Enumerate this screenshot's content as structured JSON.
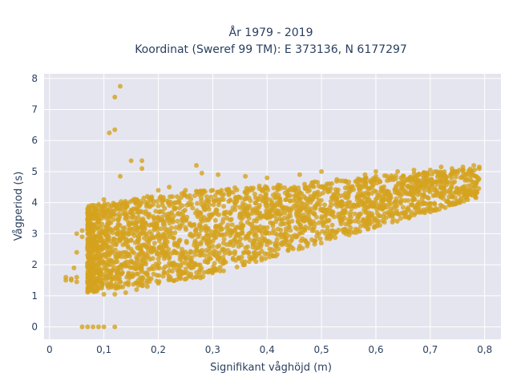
{
  "chart_data": {
    "type": "scatter",
    "title_line1": "År 1979 - 2019",
    "title_line2": "Koordinat (Sweref 99 TM): E 373136, N 6177297",
    "xlabel": "Signifikant våghöjd (m)",
    "ylabel": "Vågperiod (s)",
    "xlim": [
      -0.01,
      0.83
    ],
    "ylim": [
      -0.4,
      8.15
    ],
    "x_ticks": [
      0,
      0.1,
      0.2,
      0.3,
      0.4,
      0.5,
      0.6,
      0.7,
      0.8
    ],
    "x_tick_labels": [
      "0",
      "0,1",
      "0,2",
      "0,3",
      "0,4",
      "0,5",
      "0,6",
      "0,7",
      "0,8"
    ],
    "y_ticks": [
      0,
      1,
      2,
      3,
      4,
      5,
      6,
      7,
      8
    ],
    "y_tick_labels": [
      "0",
      "1",
      "2",
      "3",
      "4",
      "5",
      "6",
      "7",
      "8"
    ],
    "grid": true,
    "legend": "none",
    "marker_color": "#d4a21e",
    "plot_bg": "#e5e5ef",
    "series": [
      {
        "points": [
          [
            0.03,
            1.6
          ],
          [
            0.03,
            1.5
          ],
          [
            0.04,
            1.55
          ],
          [
            0.04,
            1.5
          ],
          [
            0.05,
            1.6
          ],
          [
            0.05,
            1.45
          ],
          [
            0.05,
            3.0
          ],
          [
            0.06,
            3.1
          ],
          [
            0.06,
            2.9
          ],
          [
            0.045,
            1.9
          ],
          [
            0.05,
            2.4
          ],
          [
            0.06,
            0.0
          ],
          [
            0.07,
            0.0
          ],
          [
            0.08,
            0.0
          ],
          [
            0.09,
            0.0
          ],
          [
            0.1,
            0.0
          ],
          [
            0.12,
            0.0
          ],
          [
            0.13,
            7.75
          ],
          [
            0.12,
            7.4
          ],
          [
            0.11,
            6.25
          ],
          [
            0.12,
            6.35
          ],
          [
            0.15,
            5.35
          ],
          [
            0.17,
            5.35
          ],
          [
            0.17,
            5.1
          ],
          [
            0.13,
            4.85
          ],
          [
            0.27,
            5.2
          ],
          [
            0.28,
            4.95
          ],
          [
            0.31,
            4.9
          ],
          [
            0.36,
            4.85
          ],
          [
            0.4,
            4.8
          ],
          [
            0.46,
            4.9
          ],
          [
            0.5,
            5.0
          ],
          [
            0.58,
            4.9
          ],
          [
            0.6,
            5.0
          ],
          [
            0.64,
            5.0
          ],
          [
            0.67,
            5.05
          ],
          [
            0.7,
            5.05
          ],
          [
            0.72,
            5.15
          ],
          [
            0.74,
            5.1
          ],
          [
            0.76,
            5.15
          ],
          [
            0.78,
            5.2
          ],
          [
            0.79,
            5.15
          ],
          [
            0.75,
            4.95
          ],
          [
            0.72,
            4.85
          ],
          [
            0.7,
            4.75
          ],
          [
            0.68,
            4.6
          ],
          [
            0.66,
            4.5
          ],
          [
            0.64,
            4.3
          ],
          [
            0.62,
            4.25
          ],
          [
            0.6,
            4.1
          ],
          [
            0.58,
            4.0
          ],
          [
            0.56,
            3.9
          ],
          [
            0.54,
            3.75
          ],
          [
            0.52,
            3.6
          ],
          [
            0.5,
            3.5
          ],
          [
            0.48,
            3.4
          ],
          [
            0.46,
            3.3
          ],
          [
            0.44,
            3.2
          ],
          [
            0.42,
            3.15
          ],
          [
            0.4,
            3.05
          ],
          [
            0.38,
            2.95
          ],
          [
            0.36,
            2.85
          ],
          [
            0.34,
            2.8
          ],
          [
            0.32,
            2.7
          ],
          [
            0.3,
            2.6
          ],
          [
            0.28,
            2.4
          ],
          [
            0.26,
            2.1
          ],
          [
            0.24,
            1.8
          ],
          [
            0.22,
            1.55
          ],
          [
            0.2,
            1.4
          ],
          [
            0.18,
            1.3
          ],
          [
            0.16,
            1.2
          ],
          [
            0.14,
            1.1
          ],
          [
            0.12,
            1.05
          ],
          [
            0.1,
            1.05
          ],
          [
            0.08,
            1.2
          ],
          [
            0.07,
            1.4
          ],
          [
            0.07,
            2.0
          ],
          [
            0.08,
            2.5
          ],
          [
            0.08,
            3.0
          ],
          [
            0.09,
            3.5
          ],
          [
            0.1,
            3.9
          ],
          [
            0.1,
            4.1
          ],
          [
            0.12,
            3.9
          ],
          [
            0.14,
            4.0
          ],
          [
            0.16,
            4.1
          ],
          [
            0.18,
            4.2
          ],
          [
            0.2,
            4.4
          ],
          [
            0.22,
            4.5
          ],
          [
            0.25,
            4.4
          ],
          [
            0.28,
            4.3
          ],
          [
            0.3,
            4.4
          ],
          [
            0.33,
            4.4
          ],
          [
            0.36,
            4.35
          ],
          [
            0.39,
            4.4
          ],
          [
            0.42,
            4.45
          ],
          [
            0.45,
            4.5
          ],
          [
            0.48,
            4.55
          ],
          [
            0.51,
            4.6
          ],
          [
            0.54,
            4.7
          ],
          [
            0.57,
            4.75
          ],
          [
            0.6,
            4.85
          ],
          [
            0.63,
            4.8
          ],
          [
            0.3,
            1.8
          ],
          [
            0.32,
            1.8
          ],
          [
            0.26,
            1.7
          ],
          [
            0.24,
            1.6
          ],
          [
            0.15,
            2.5
          ],
          [
            0.2,
            3.0
          ],
          [
            0.25,
            3.2
          ],
          [
            0.35,
            3.6
          ],
          [
            0.45,
            3.9
          ],
          [
            0.55,
            4.3
          ],
          [
            0.65,
            4.6
          ],
          [
            0.11,
            2.0
          ],
          [
            0.13,
            2.8
          ],
          [
            0.17,
            3.3
          ],
          [
            0.19,
            2.2
          ],
          [
            0.23,
            2.7
          ],
          [
            0.27,
            3.0
          ]
        ]
      }
    ]
  }
}
